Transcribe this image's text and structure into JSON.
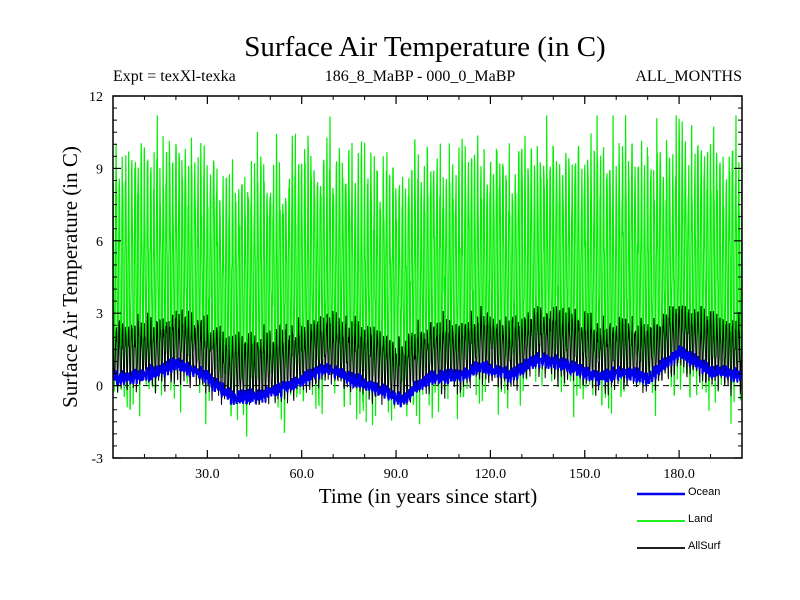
{
  "chart_data": {
    "type": "line",
    "title": "Surface Air Temperature (in C)",
    "subtitle_left": "Expt = texXl-texka",
    "subtitle_center": "186_8_MaBP - 000_0_MaBP",
    "subtitle_right": "ALL_MONTHS",
    "xlabel": "Time (in years since start)",
    "ylabel": "Surface Air Temperature (in C)",
    "xlim": [
      0,
      200
    ],
    "ylim": [
      -3,
      12
    ],
    "xticks": [
      30,
      60,
      90,
      120,
      150,
      180
    ],
    "xtick_labels": [
      "30.0",
      "60.0",
      "90.0",
      "120.0",
      "150.0",
      "180.0"
    ],
    "yticks": [
      -3,
      0,
      3,
      6,
      9,
      12
    ],
    "ytick_labels": [
      "-3",
      "0",
      "3",
      "6",
      "9",
      "12"
    ],
    "reference_line": 0,
    "series": [
      {
        "name": "Land",
        "color": "#00ee00",
        "description": "monthly series oscillating between about -1.5 and 10",
        "mean": 4.3,
        "min": -2.3,
        "max": 11.2
      },
      {
        "name": "AllSurf",
        "color": "#000000",
        "description": "monthly series oscillating between about -0.5 and 3.5",
        "mean": 1.0,
        "min": -0.8,
        "max": 3.3
      },
      {
        "name": "Ocean",
        "color": "#0000ee",
        "description": "slowly varying series near 0",
        "anchors_x": [
          0,
          10,
          20,
          28,
          38,
          48,
          58,
          68,
          75,
          82,
          92,
          100,
          110,
          118,
          126,
          135,
          145,
          155,
          162,
          170,
          180,
          190,
          200
        ],
        "anchors_y": [
          0.3,
          0.4,
          0.9,
          0.5,
          -0.5,
          -0.4,
          0.1,
          0.7,
          0.3,
          0.0,
          -0.6,
          0.3,
          0.4,
          0.8,
          0.4,
          1.1,
          0.8,
          0.3,
          0.6,
          0.3,
          1.4,
          0.6,
          0.4
        ]
      }
    ],
    "legend": [
      {
        "name": "Ocean",
        "color": "#0000ee"
      },
      {
        "name": "Land",
        "color": "#00ee00"
      },
      {
        "name": "AllSurf",
        "color": "#000000"
      }
    ]
  }
}
